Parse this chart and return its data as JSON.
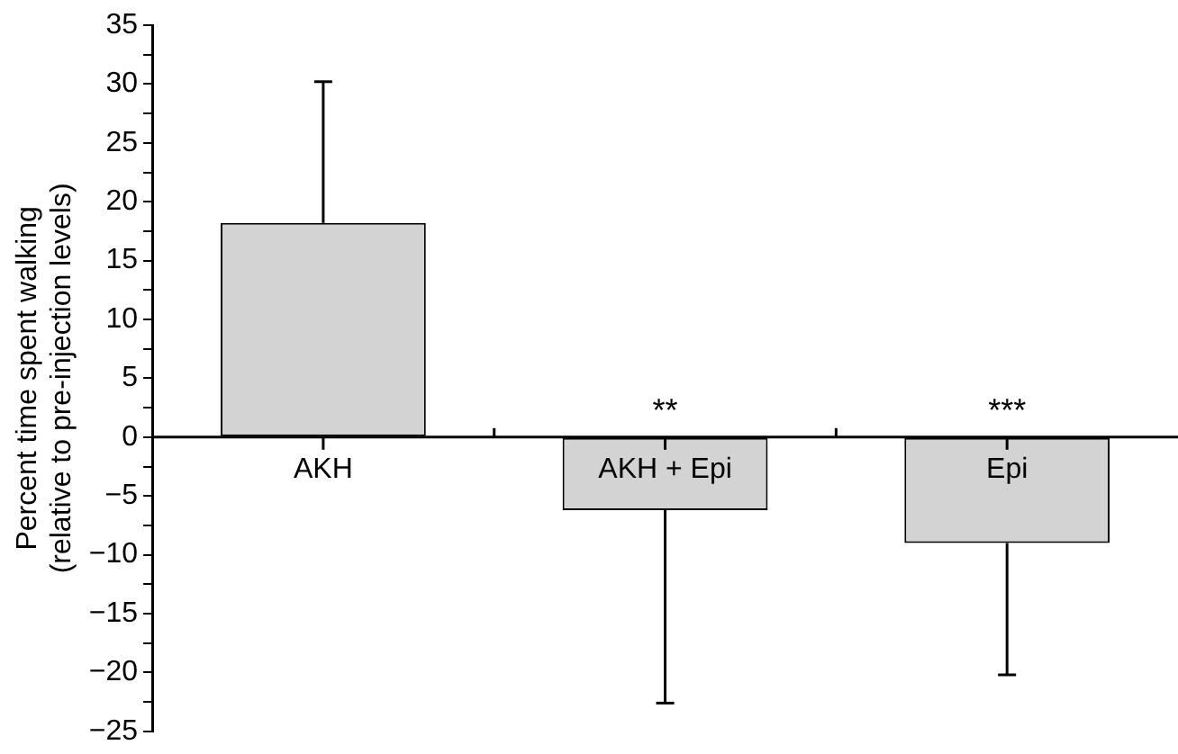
{
  "chart_data": {
    "type": "bar",
    "ylabel": "Percent time spent walking\n(relative to pre-injection levels)",
    "categories": [
      "AKH",
      "AKH + Epi",
      "Epi"
    ],
    "values": [
      18.2,
      -6.2,
      -9.0
    ],
    "color": "#d3d3d3",
    "errors": [
      [
        18.2,
        30.2
      ],
      [
        -22.6,
        -6.2
      ],
      [
        -20.2,
        -9.0
      ]
    ],
    "ylim": [
      -25,
      35
    ],
    "yticks": [
      -25,
      {
        "value": -22.5,
        "label": null
      },
      -20,
      {
        "value": -17.5,
        "label": null
      },
      -15,
      {
        "value": -12.5,
        "label": null
      },
      -10,
      {
        "value": -7.5,
        "label": null
      },
      -5,
      {
        "value": -2.5,
        "label": null
      },
      0,
      {
        "value": 2.5,
        "label": null
      },
      5,
      {
        "value": 7.5,
        "label": null
      },
      10,
      {
        "value": 12.5,
        "label": null
      },
      15,
      {
        "value": 17.5,
        "label": null
      },
      20,
      {
        "value": 22.5,
        "label": null
      },
      25,
      {
        "value": 27.5,
        "label": null
      },
      30,
      {
        "value": 32.5,
        "label": null
      },
      35
    ],
    "annotations": [
      "**",
      "***"
    ],
    "grid": false,
    "legend": false
  }
}
